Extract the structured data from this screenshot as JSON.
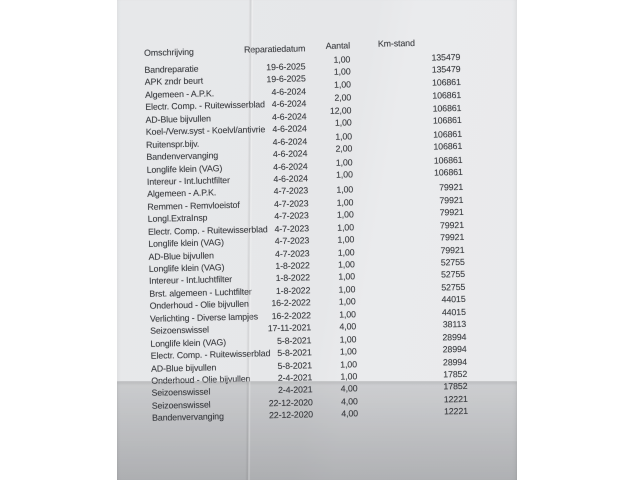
{
  "document": {
    "header": {
      "omschrijving": "Omschrijving",
      "reparatiedatum": "Reparatiedatum",
      "aantal": "Aantal",
      "km_stand": "Km-stand"
    },
    "rows": [
      {
        "omschrijving": "Bandreparatie",
        "datum": "19-6-2025",
        "aantal": "1,00",
        "km": "135479"
      },
      {
        "omschrijving": "APK zndr beurt",
        "datum": "19-6-2025",
        "aantal": "1,00",
        "km": "135479"
      },
      {
        "omschrijving": "Algemeen - A.P.K.",
        "datum": "4-6-2024",
        "aantal": "1,00",
        "km": "106861"
      },
      {
        "omschrijving": "Electr. Comp. - Ruitewisserblad",
        "datum": "4-6-2024",
        "aantal": "2,00",
        "km": "106861"
      },
      {
        "omschrijving": "AD-Blue bijvullen",
        "datum": "4-6-2024",
        "aantal": "12,00",
        "km": "106861"
      },
      {
        "omschrijving": "Koel-/Verw.syst - Koelvl/antivrie",
        "datum": "4-6-2024",
        "aantal": "1,00",
        "km": "106861"
      },
      {
        "omschrijving": "Ruitenspr.bijv.",
        "datum": "4-6-2024",
        "aantal": "1,00",
        "km": "106861"
      },
      {
        "omschrijving": "Bandenvervanging",
        "datum": "4-6-2024",
        "aantal": "2,00",
        "km": "106861"
      },
      {
        "omschrijving": "Longlife klein (VAG)",
        "datum": "4-6-2024",
        "aantal": "1,00",
        "km": "106861"
      },
      {
        "omschrijving": "Intereur - Int.luchtfilter",
        "datum": "4-6-2024",
        "aantal": "1,00",
        "km": "106861"
      },
      {
        "omschrijving": "Algemeen - A.P.K.",
        "datum": "4-7-2023",
        "aantal": "1,00",
        "km": "79921"
      },
      {
        "omschrijving": "Remmen - Remvloeistof",
        "datum": "4-7-2023",
        "aantal": "1,00",
        "km": "79921"
      },
      {
        "omschrijving": "Longl.ExtraInsp",
        "datum": "4-7-2023",
        "aantal": "1,00",
        "km": "79921"
      },
      {
        "omschrijving": "Electr. Comp. - Ruitewisserblad",
        "datum": "4-7-2023",
        "aantal": "1,00",
        "km": "79921"
      },
      {
        "omschrijving": "Longlife klein (VAG)",
        "datum": "4-7-2023",
        "aantal": "1,00",
        "km": "79921"
      },
      {
        "omschrijving": "AD-Blue bijvullen",
        "datum": "4-7-2023",
        "aantal": "1,00",
        "km": "79921"
      },
      {
        "omschrijving": "Longlife klein (VAG)",
        "datum": "1-8-2022",
        "aantal": "1,00",
        "km": "52755"
      },
      {
        "omschrijving": "Intereur - Int.luchtfilter",
        "datum": "1-8-2022",
        "aantal": "1,00",
        "km": "52755"
      },
      {
        "omschrijving": "Brst. algemeen - Luchtfilter",
        "datum": "1-8-2022",
        "aantal": "1,00",
        "km": "52755"
      },
      {
        "omschrijving": "Onderhoud - Olie bijvullen",
        "datum": "16-2-2022",
        "aantal": "1,00",
        "km": "44015"
      },
      {
        "omschrijving": "Verlichting - Diverse lampjes",
        "datum": "16-2-2022",
        "aantal": "1,00",
        "km": "44015"
      },
      {
        "omschrijving": "Seizoenswissel",
        "datum": "17-11-2021",
        "aantal": "4,00",
        "km": "38113"
      },
      {
        "omschrijving": "Longlife klein (VAG)",
        "datum": "5-8-2021",
        "aantal": "1,00",
        "km": "28994"
      },
      {
        "omschrijving": "Electr. Comp. - Ruitewisserblad",
        "datum": "5-8-2021",
        "aantal": "1,00",
        "km": "28994"
      },
      {
        "omschrijving": "AD-Blue bijvullen",
        "datum": "5-8-2021",
        "aantal": "1,00",
        "km": "28994"
      },
      {
        "omschrijving": "Onderhoud - Olie bijvullen",
        "datum": "2-4-2021",
        "aantal": "1,00",
        "km": "17852"
      },
      {
        "omschrijving": "Seizoenswissel",
        "datum": "2-4-2021",
        "aantal": "4,00",
        "km": "17852"
      },
      {
        "omschrijving": "Seizoenswissel",
        "datum": "22-12-2020",
        "aantal": "4,00",
        "km": "12221"
      },
      {
        "omschrijving": "Bandenvervanging",
        "datum": "22-12-2020",
        "aantal": "4,00",
        "km": "12221"
      }
    ]
  }
}
